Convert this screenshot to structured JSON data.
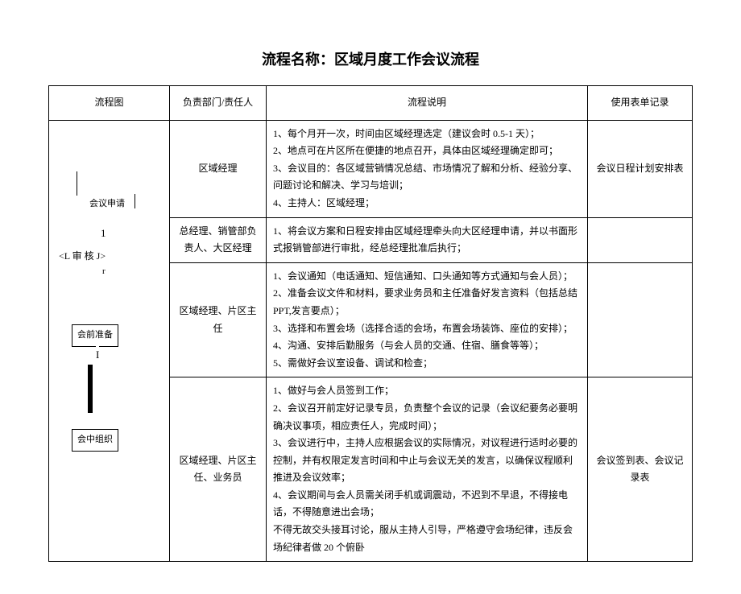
{
  "title": "流程名称：区域月度工作会议流程",
  "headers": {
    "flow": "流程图",
    "dept": "负责部门/责任人",
    "desc": "流程说明",
    "form": "使用表单记录"
  },
  "flowchart": {
    "node1": "会议申请",
    "mid1": "1",
    "mid2": "<L 审   核 J>",
    "mid3": "r",
    "node2": "会前准备",
    "mid4": "I",
    "node3": "会中组织"
  },
  "rows": [
    {
      "dept": "区域经理",
      "desc": "1、每个月开一次，时间由区域经理选定（建议会时 0.5-1 天）；\n2、地点可在片区所在便捷的地点召开，具体由区域经理确定即可；\n3、会议目的：各区域营销情况总结、市场情况了解和分析、经验分享、问题讨论和解决、学习与培训；\n4、主持人：区域经理；",
      "form": "会议日程计划安排表"
    },
    {
      "dept": "总经理、销管部负责人、大区经理",
      "desc": "1、将会议方案和日程安排由区域经理牵头向大区经理申请，并以书面形式报销管部进行审批，经总经理批准后执行；",
      "form": ""
    },
    {
      "dept": "区域经理、片区主任",
      "desc": "1、会议通知（电话通知、短信通知、口头通知等方式通知与会人员）；\n2、准备会议文件和材料，要求业务员和主任准备好发言资料（包括总结 PPT,发言要点）；\n3、选择和布置会场（选择合适的会场，布置会场装饰、座位的安排）；\n4、沟通、安排后勤服务（与会人员的交通、住宿、膳食等等）；\n5、需做好会议室设备、调试和检查；",
      "form": ""
    },
    {
      "dept": "区域经理、片区主任、业务员",
      "desc": "1、做好与会人员签到工作；\n2、会议召开前定好记录专员，负责整个会议的记录（会议纪要务必要明确决议事项，相应责任人，完成时间）；\n3、会议进行中，主持人应根据会议的实际情况，对议程进行适时必要的控制，并有权限定发言时间和中止与会议无关的发言，以确保议程顺利推进及会议效率；\n4、会议期间与会人员需关闭手机或调震动，不迟到不早退，不得接电话，不得随意进出会场；\n不得无故交头接耳讨论，服从主持人引导，严格遵守会场纪律，违反会场纪律者做 20 个俯卧",
      "form": "会议签到表、会议记录表"
    }
  ]
}
